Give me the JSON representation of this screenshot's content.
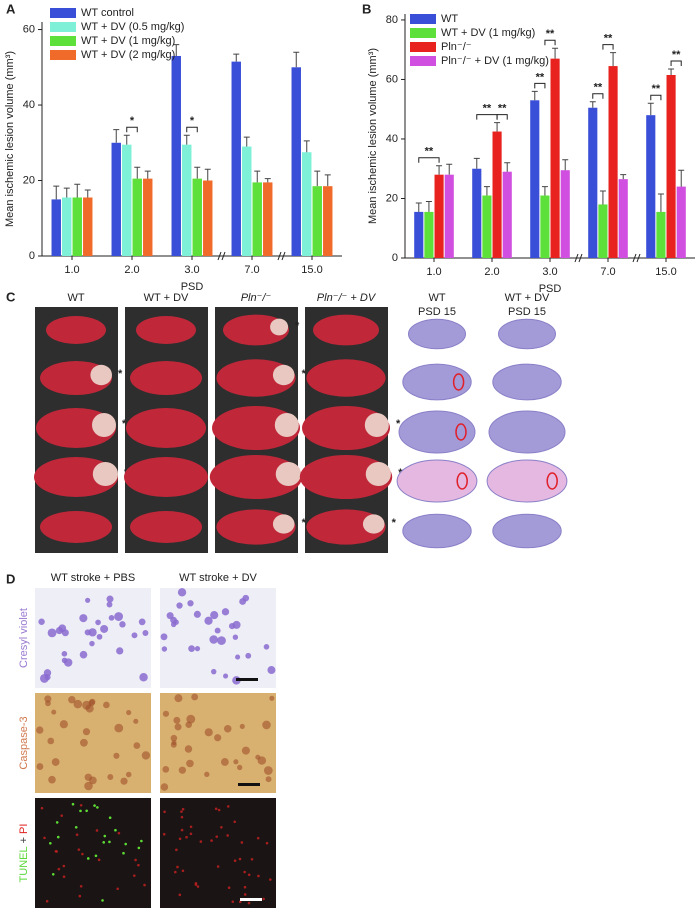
{
  "chart_data": [
    {
      "type": "bar",
      "panel": "A",
      "ylabel": "Mean ischemic lesion volume (mm³)",
      "xlabel": "PSD",
      "categories": [
        "1.0",
        "2.0",
        "3.0",
        "7.0",
        "15.0"
      ],
      "series": [
        {
          "name": "WT control",
          "color": "#3a4fd8",
          "values": [
            15,
            30,
            53,
            51.5,
            50
          ],
          "errors": [
            3.5,
            3.5,
            3,
            2,
            4
          ]
        },
        {
          "name": "WT + DV (0.5 mg/kg)",
          "color": "#7ff0d8",
          "values": [
            15.5,
            29.5,
            29.5,
            29,
            27.5
          ],
          "errors": [
            2.5,
            2.5,
            2.5,
            2.5,
            3
          ]
        },
        {
          "name": "WT + DV (1 mg/kg)",
          "color": "#5ee03a",
          "values": [
            15.5,
            20.5,
            20.5,
            19.5,
            18.5
          ],
          "errors": [
            3.5,
            3,
            3,
            3,
            4
          ]
        },
        {
          "name": "WT + DV (2 mg/kg)",
          "color": "#f06a2a",
          "values": [
            15.5,
            20.5,
            20,
            19.5,
            18.5
          ],
          "errors": [
            2,
            2,
            3,
            1,
            3
          ]
        }
      ],
      "ylim": [
        0,
        62
      ],
      "yticks": [
        0,
        20,
        40,
        60
      ],
      "annotations": [
        {
          "text": "*",
          "category": "2.0",
          "between": [
            "WT + DV (0.5 mg/kg)",
            "WT + DV (1 mg/kg)"
          ]
        },
        {
          "text": "*",
          "category": "3.0",
          "between": [
            "WT + DV (0.5 mg/kg)",
            "WT + DV (1 mg/kg)"
          ]
        }
      ]
    },
    {
      "type": "bar",
      "panel": "B",
      "ylabel": "Mean ischemic lesion volume (mm³)",
      "xlabel": "PSD",
      "categories": [
        "1.0",
        "2.0",
        "3.0",
        "7.0",
        "15.0"
      ],
      "series": [
        {
          "name": "WT",
          "color": "#3a4fd8",
          "values": [
            15.5,
            30,
            53,
            50.5,
            48
          ],
          "errors": [
            3,
            3.5,
            3,
            2,
            4
          ]
        },
        {
          "name": "WT + DV (1 mg/kg)",
          "color": "#5ee03a",
          "values": [
            15.5,
            21,
            21,
            18,
            15.5
          ],
          "errors": [
            3.5,
            3,
            3,
            4.5,
            6
          ]
        },
        {
          "name": "Pln⁻/⁻",
          "color": "#e8231f",
          "values": [
            28,
            42.5,
            67,
            64.5,
            61.5
          ],
          "errors": [
            3,
            3,
            3.5,
            4.5,
            2
          ]
        },
        {
          "name": "Pln⁻/⁻ + DV (1 mg/kg)",
          "color": "#d04ee0",
          "values": [
            28,
            29,
            29.5,
            26.5,
            24
          ],
          "errors": [
            3.5,
            3,
            3.5,
            1.5,
            5.5
          ]
        }
      ],
      "ylim": [
        0,
        82
      ],
      "yticks": [
        0,
        20,
        40,
        60,
        80
      ],
      "annotations": [
        {
          "text": "**",
          "category": "1.0",
          "between": [
            "WT",
            "Pln⁻/⁻"
          ]
        },
        {
          "text": "**",
          "category": "2.0",
          "between": [
            "WT",
            "Pln⁻/⁻"
          ]
        },
        {
          "text": "**",
          "category": "2.0",
          "between": [
            "Pln⁻/⁻",
            "Pln⁻/⁻ + DV (1 mg/kg)"
          ]
        },
        {
          "text": "**",
          "category": "3.0",
          "between": [
            "WT",
            "WT + DV (1 mg/kg)"
          ]
        },
        {
          "text": "**",
          "category": "3.0",
          "between": [
            "WT + DV (1 mg/kg)",
            "Pln⁻/⁻"
          ]
        },
        {
          "text": "**",
          "category": "7.0",
          "between": [
            "WT",
            "WT + DV (1 mg/kg)"
          ]
        },
        {
          "text": "**",
          "category": "7.0",
          "between": [
            "WT + DV (1 mg/kg)",
            "Pln⁻/⁻"
          ]
        },
        {
          "text": "**",
          "category": "15.0",
          "between": [
            "WT",
            "WT + DV (1 mg/kg)"
          ]
        },
        {
          "text": "**",
          "category": "15.0",
          "between": [
            "Pln⁻/⁻",
            "Pln⁻/⁻ + DV (1 mg/kg)"
          ]
        }
      ]
    }
  ],
  "panel_c": {
    "label": "C",
    "columns": [
      "WT",
      "WT + DV",
      "Pln⁻/⁻",
      "Pln⁻/⁻ + DV"
    ],
    "histology_columns": [
      [
        "WT",
        "PSD 15"
      ],
      [
        "WT + DV",
        "PSD 15"
      ]
    ],
    "marker": "*"
  },
  "panel_d": {
    "label": "D",
    "columns": [
      "WT stroke + PBS",
      "WT stroke + DV"
    ],
    "rows": [
      [
        "Cresyl violet"
      ],
      [
        "Caspase-3"
      ],
      [
        "TUNEL",
        "+",
        "PI"
      ]
    ]
  }
}
